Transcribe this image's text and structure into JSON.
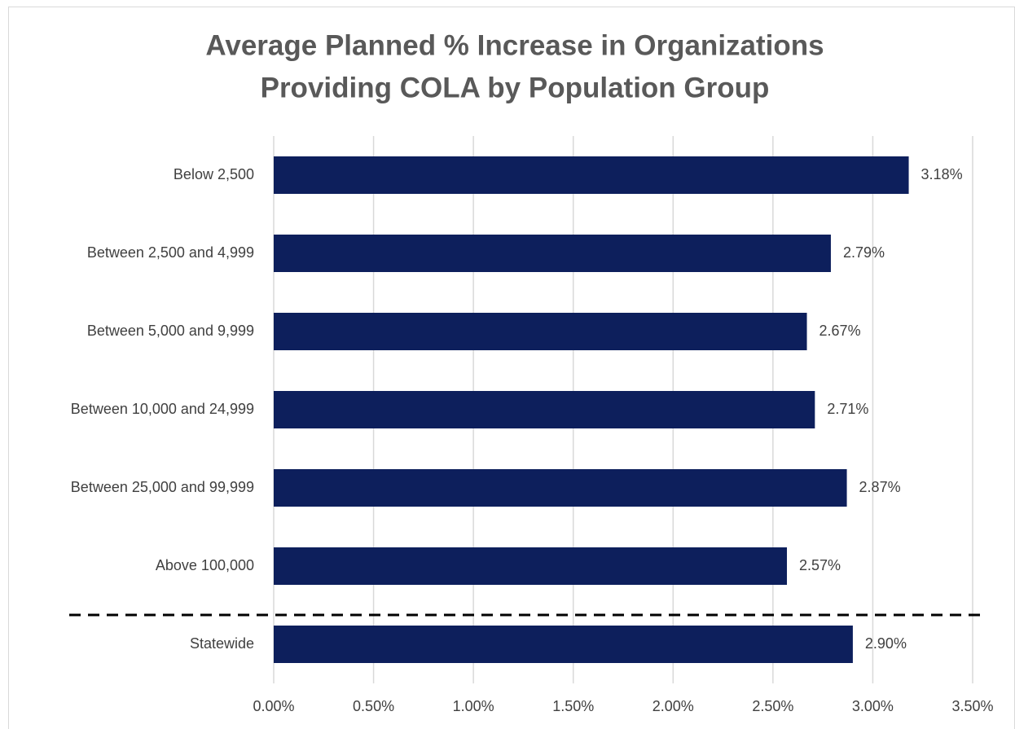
{
  "chart_data": {
    "type": "bar",
    "orientation": "horizontal",
    "title": [
      "Average Planned % Increase in Organizations",
      "Providing COLA by Population Group"
    ],
    "categories": [
      "Below 2,500",
      "Between 2,500 and 4,999",
      "Between 5,000 and 9,999",
      "Between 10,000 and 24,999",
      "Between 25,000 and 99,999",
      "Above 100,000",
      "Statewide"
    ],
    "values": [
      3.18,
      2.79,
      2.67,
      2.71,
      2.87,
      2.57,
      2.9
    ],
    "value_labels": [
      "3.18%",
      "2.79%",
      "2.67%",
      "2.71%",
      "2.87%",
      "2.57%",
      "2.90%"
    ],
    "color": "#0d1f5c",
    "xlim": [
      0,
      3.5
    ],
    "xticks": [
      {
        "value": 0,
        "label": "0.00%"
      },
      {
        "value": 0.5,
        "label": "0.50%"
      },
      {
        "value": 1,
        "label": "1.00%"
      },
      {
        "value": 1.5,
        "label": "1.50%"
      },
      {
        "value": 2,
        "label": "2.00%"
      },
      {
        "value": 2.5,
        "label": "2.50%"
      },
      {
        "value": 3,
        "label": "3.00%"
      },
      {
        "value": 3.5,
        "label": "3.50%"
      }
    ],
    "grid": true
  }
}
